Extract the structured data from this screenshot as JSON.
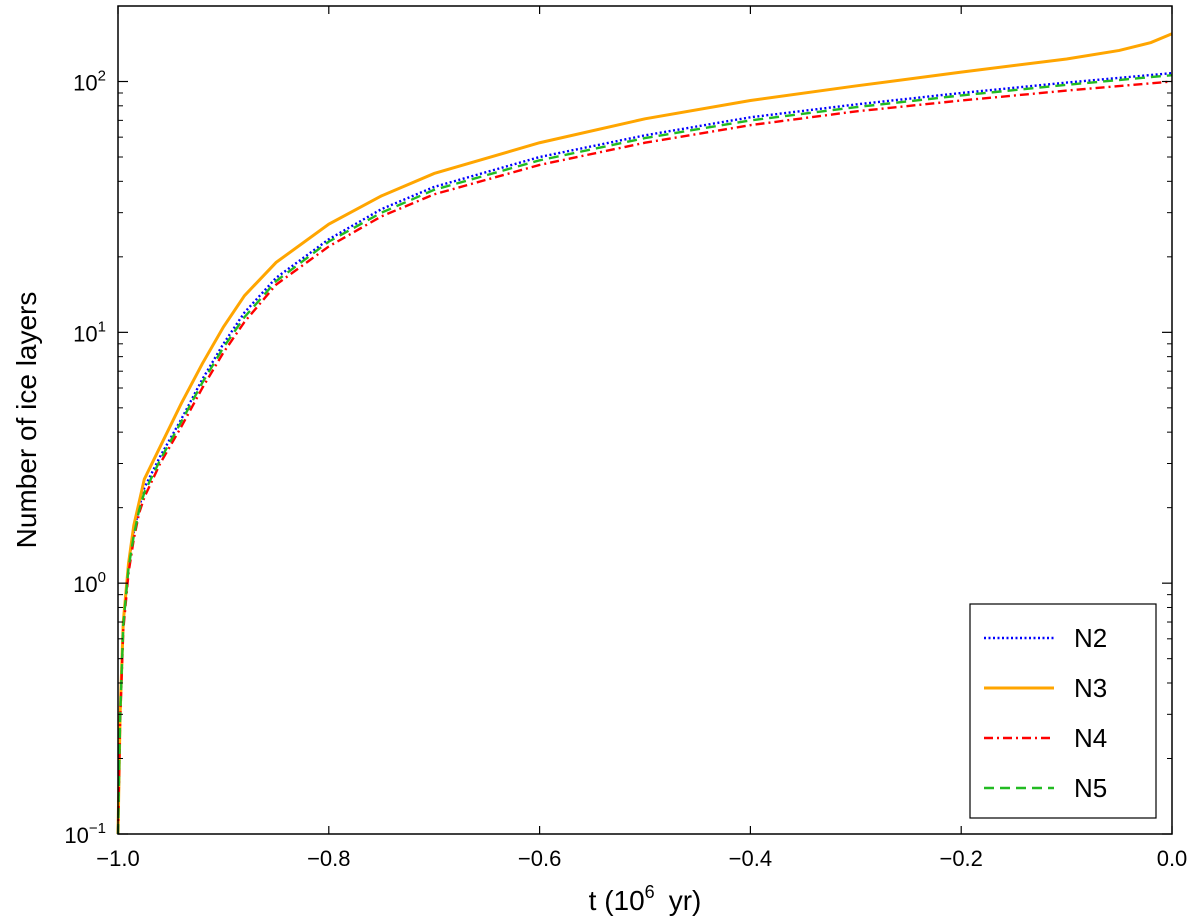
{
  "chart_data": {
    "type": "line",
    "title": "",
    "xlabel": "t (10",
    "xlabel_sup": "6",
    "xlabel_suffix": "yr)",
    "ylabel": "Number of ice layers",
    "xlim": [
      -1.0,
      0.0
    ],
    "ylim": [
      0.1,
      200
    ],
    "yscale": "log",
    "grid": false,
    "legend_position": "lower-right",
    "x_ticks": [
      {
        "value": -1.0,
        "label": "−1.0"
      },
      {
        "value": -0.8,
        "label": "−0.8"
      },
      {
        "value": -0.6,
        "label": "−0.6"
      },
      {
        "value": -0.4,
        "label": "−0.4"
      },
      {
        "value": -0.2,
        "label": "−0.2"
      },
      {
        "value": 0.0,
        "label": "0.0"
      }
    ],
    "y_ticks": [
      {
        "value": 0.1,
        "base": "10",
        "exp": "−1"
      },
      {
        "value": 1,
        "base": "10",
        "exp": "0"
      },
      {
        "value": 10,
        "base": "10",
        "exp": "1"
      },
      {
        "value": 100,
        "base": "10",
        "exp": "2"
      }
    ],
    "series": [
      {
        "name": "N2",
        "color": "#0000ff",
        "style": "dotted",
        "x": [
          -1.0,
          -0.998,
          -0.995,
          -0.99,
          -0.985,
          -0.98,
          -0.975,
          -0.96,
          -0.94,
          -0.92,
          -0.9,
          -0.88,
          -0.85,
          -0.8,
          -0.75,
          -0.7,
          -0.6,
          -0.5,
          -0.4,
          -0.3,
          -0.2,
          -0.1,
          0.0
        ],
        "values": [
          0.1,
          0.3,
          0.7,
          1.2,
          1.6,
          2.0,
          2.4,
          3.2,
          4.5,
          6.5,
          9.0,
          12.0,
          16.5,
          23.5,
          31.0,
          38.0,
          50.0,
          61.0,
          72.0,
          81.0,
          90.0,
          99.0,
          108.0
        ]
      },
      {
        "name": "N3",
        "color": "#ffa500",
        "style": "solid",
        "x": [
          -1.0,
          -0.998,
          -0.995,
          -0.99,
          -0.985,
          -0.98,
          -0.975,
          -0.96,
          -0.94,
          -0.92,
          -0.9,
          -0.88,
          -0.85,
          -0.8,
          -0.75,
          -0.7,
          -0.6,
          -0.5,
          -0.4,
          -0.3,
          -0.2,
          -0.1,
          -0.05,
          -0.02,
          0.0
        ],
        "values": [
          0.1,
          0.3,
          0.7,
          1.2,
          1.7,
          2.1,
          2.6,
          3.5,
          5.2,
          7.5,
          10.5,
          14.0,
          19.0,
          27.0,
          35.0,
          43.0,
          57.0,
          71.0,
          84.0,
          96.0,
          109.0,
          123.0,
          133.0,
          143.0,
          155.0
        ]
      },
      {
        "name": "N4",
        "color": "#ff0000",
        "style": "dashdot",
        "x": [
          -1.0,
          -0.998,
          -0.995,
          -0.99,
          -0.985,
          -0.98,
          -0.975,
          -0.96,
          -0.94,
          -0.92,
          -0.9,
          -0.88,
          -0.85,
          -0.8,
          -0.75,
          -0.7,
          -0.6,
          -0.5,
          -0.4,
          -0.3,
          -0.2,
          -0.1,
          0.0
        ],
        "values": [
          0.1,
          0.28,
          0.65,
          1.1,
          1.5,
          1.9,
          2.2,
          3.0,
          4.2,
          6.0,
          8.3,
          11.0,
          15.5,
          22.0,
          29.0,
          35.5,
          46.5,
          57.0,
          67.0,
          76.0,
          84.0,
          92.0,
          100.0
        ]
      },
      {
        "name": "N5",
        "color": "#22bb22",
        "style": "dashed",
        "x": [
          -1.0,
          -0.998,
          -0.995,
          -0.99,
          -0.985,
          -0.98,
          -0.975,
          -0.96,
          -0.94,
          -0.92,
          -0.9,
          -0.88,
          -0.85,
          -0.8,
          -0.75,
          -0.7,
          -0.6,
          -0.5,
          -0.4,
          -0.3,
          -0.2,
          -0.1,
          0.0
        ],
        "values": [
          0.1,
          0.29,
          0.68,
          1.15,
          1.55,
          1.95,
          2.3,
          3.1,
          4.4,
          6.3,
          8.7,
          11.5,
          16.0,
          23.0,
          30.0,
          37.0,
          48.5,
          59.5,
          70.0,
          79.0,
          88.0,
          97.0,
          106.0
        ]
      }
    ]
  }
}
